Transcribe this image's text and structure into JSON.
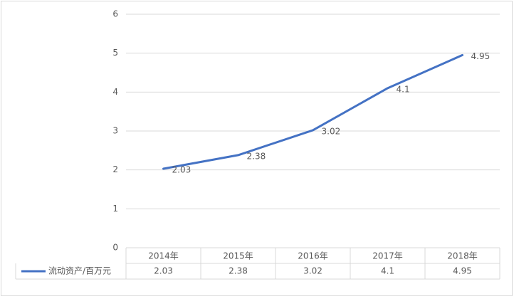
{
  "chart_data": {
    "type": "line",
    "categories": [
      "2014年",
      "2015年",
      "2016年",
      "2017年",
      "2018年"
    ],
    "series": [
      {
        "name": "流动资产/百万元",
        "color": "#4472c4",
        "values": [
          2.03,
          2.38,
          3.02,
          4.1,
          4.95
        ]
      }
    ],
    "ylim": [
      0,
      6
    ],
    "yticks": [
      0,
      1,
      2,
      3,
      4,
      5,
      6
    ],
    "grid": true,
    "data_labels": true,
    "data_table": true
  }
}
